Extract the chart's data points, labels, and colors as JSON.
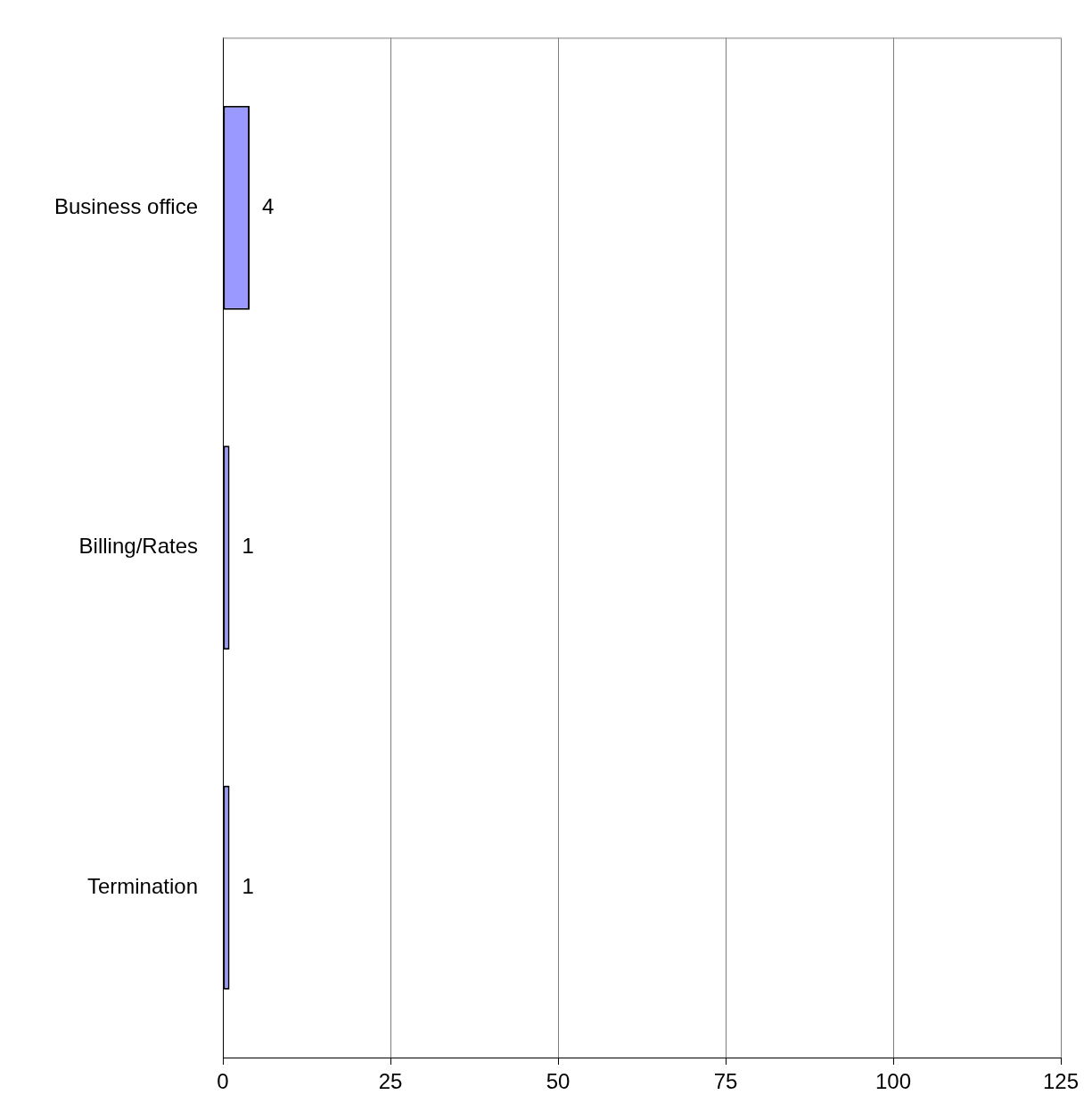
{
  "chart_data": {
    "type": "bar",
    "orientation": "horizontal",
    "categories": [
      "Business office",
      "Billing/Rates",
      "Termination"
    ],
    "values": [
      4,
      1,
      1
    ],
    "color": "#9999ff",
    "xlim": [
      0,
      125
    ],
    "xticks": [
      0,
      25,
      50,
      75,
      100,
      125
    ],
    "grid": "x",
    "data_labels": true
  }
}
